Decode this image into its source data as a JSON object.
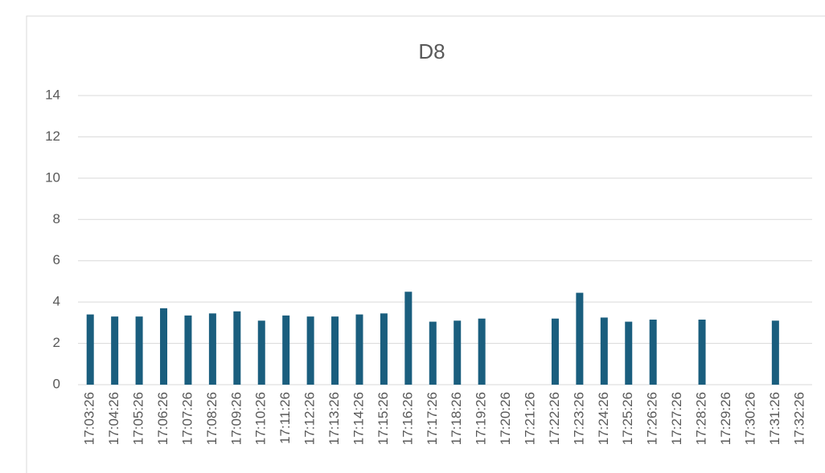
{
  "chart_data": {
    "type": "bar",
    "title": "D8",
    "categories": [
      "17:03:26",
      "17:04:26",
      "17:05:26",
      "17:06:26",
      "17:07:26",
      "17:08:26",
      "17:09:26",
      "17:10:26",
      "17:11:26",
      "17:12:26",
      "17:13:26",
      "17:14:26",
      "17:15:26",
      "17:16:26",
      "17:17:26",
      "17:18:26",
      "17:19:26",
      "17:20:26",
      "17:21:26",
      "17:22:26",
      "17:23:26",
      "17:24:26",
      "17:25:26",
      "17:26:26",
      "17:27:26",
      "17:28:26",
      "17:29:26",
      "17:30:26",
      "17:31:26",
      "17:32:26"
    ],
    "values": [
      3.4,
      3.3,
      3.3,
      3.7,
      3.35,
      3.45,
      3.55,
      3.1,
      3.35,
      3.3,
      3.3,
      3.4,
      3.45,
      4.5,
      3.05,
      3.1,
      3.2,
      null,
      null,
      3.2,
      4.45,
      3.25,
      3.05,
      3.15,
      null,
      3.15,
      null,
      null,
      3.1,
      null
    ],
    "color": "#1a5e7e",
    "ylim": [
      0,
      14
    ],
    "yticks": [
      0,
      2,
      4,
      6,
      8,
      10,
      12,
      14
    ],
    "grid": true
  }
}
